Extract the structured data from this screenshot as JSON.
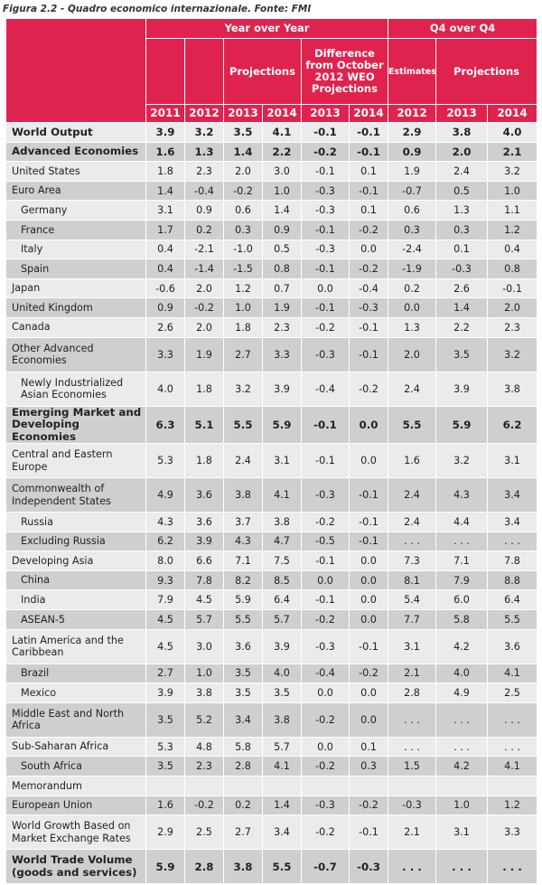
{
  "caption": "Figura 2.2 - Quadro economico internazionale. Fonte: FMI",
  "header": {
    "group_yoy": "Year over Year",
    "group_q4": "Q4 over Q4",
    "projections": "Projections",
    "difference": "Difference from October 2012 WEO Projections",
    "estimates": "Estimates",
    "projections_q4": "Projections",
    "years": [
      "2011",
      "2012",
      "2013",
      "2014",
      "2013",
      "2014",
      "2012",
      "2013",
      "2014"
    ]
  },
  "rows": [
    {
      "label": "World Output",
      "values": [
        "3.9",
        "3.2",
        "3.5",
        "4.1",
        "-0.1",
        "-0.1",
        "2.9",
        "3.8",
        "4.0"
      ],
      "bold": true
    },
    {
      "label": "Advanced Economies",
      "values": [
        "1.6",
        "1.3",
        "1.4",
        "2.2",
        "-0.2",
        "-0.1",
        "0.9",
        "2.0",
        "2.1"
      ],
      "bold": true
    },
    {
      "label": "United States",
      "values": [
        "1.8",
        "2.3",
        "2.0",
        "3.0",
        "-0.1",
        "0.1",
        "1.9",
        "2.4",
        "3.2"
      ]
    },
    {
      "label": "Euro Area",
      "values": [
        "1.4",
        "-0.4",
        "-0.2",
        "1.0",
        "-0.3",
        "-0.1",
        "-0.7",
        "0.5",
        "1.0"
      ]
    },
    {
      "label": "Germany",
      "values": [
        "3.1",
        "0.9",
        "0.6",
        "1.4",
        "-0.3",
        "0.1",
        "0.6",
        "1.3",
        "1.1"
      ],
      "indent": true
    },
    {
      "label": "France",
      "values": [
        "1.7",
        "0.2",
        "0.3",
        "0.9",
        "-0.1",
        "-0.2",
        "0.3",
        "0.3",
        "1.2"
      ],
      "indent": true
    },
    {
      "label": "Italy",
      "values": [
        "0.4",
        "-2.1",
        "-1.0",
        "0.5",
        "-0.3",
        "0.0",
        "-2.4",
        "0.1",
        "0.4"
      ],
      "indent": true
    },
    {
      "label": "Spain",
      "values": [
        "0.4",
        "-1.4",
        "-1.5",
        "0.8",
        "-0.1",
        "-0.2",
        "-1.9",
        "-0.3",
        "0.8"
      ],
      "indent": true
    },
    {
      "label": "Japan",
      "values": [
        "-0.6",
        "2.0",
        "1.2",
        "0.7",
        "0.0",
        "-0.4",
        "0.2",
        "2.6",
        "-0.1"
      ]
    },
    {
      "label": "United Kingdom",
      "values": [
        "0.9",
        "-0.2",
        "1.0",
        "1.9",
        "-0.1",
        "-0.3",
        "0.0",
        "1.4",
        "2.0"
      ]
    },
    {
      "label": "Canada",
      "values": [
        "2.6",
        "2.0",
        "1.8",
        "2.3",
        "-0.2",
        "-0.1",
        "1.3",
        "2.2",
        "2.3"
      ]
    },
    {
      "label": "Other Advanced Economies",
      "values": [
        "3.3",
        "1.9",
        "2.7",
        "3.3",
        "-0.3",
        "-0.1",
        "2.0",
        "3.5",
        "3.2"
      ],
      "tall": true
    },
    {
      "label": "Newly Industrialized Asian Economies",
      "values": [
        "4.0",
        "1.8",
        "3.2",
        "3.9",
        "-0.4",
        "-0.2",
        "2.4",
        "3.9",
        "3.8"
      ],
      "indent": true,
      "tall": true
    },
    {
      "label": "Emerging Market and Developing Economies",
      "values": [
        "6.3",
        "5.1",
        "5.5",
        "5.9",
        "-0.1",
        "0.0",
        "5.5",
        "5.9",
        "6.2"
      ],
      "bold": true,
      "tall": true
    },
    {
      "label": "Central and Eastern Europe",
      "values": [
        "5.3",
        "1.8",
        "2.4",
        "3.1",
        "-0.1",
        "0.0",
        "1.6",
        "3.2",
        "3.1"
      ],
      "tall": true
    },
    {
      "label": "Commonwealth of Independent States",
      "values": [
        "4.9",
        "3.6",
        "3.8",
        "4.1",
        "-0.3",
        "-0.1",
        "2.4",
        "4.3",
        "3.4"
      ],
      "tall": true
    },
    {
      "label": "Russia",
      "values": [
        "4.3",
        "3.6",
        "3.7",
        "3.8",
        "-0.2",
        "-0.1",
        "2.4",
        "4.4",
        "3.4"
      ],
      "indent": true
    },
    {
      "label": "Excluding Russia",
      "values": [
        "6.2",
        "3.9",
        "4.3",
        "4.7",
        "-0.5",
        "-0.1",
        ". . .",
        ". . .",
        ". . ."
      ],
      "indent": true
    },
    {
      "label": "Developing Asia",
      "values": [
        "8.0",
        "6.6",
        "7.1",
        "7.5",
        "-0.1",
        "0.0",
        "7.3",
        "7.1",
        "7.8"
      ]
    },
    {
      "label": "China",
      "values": [
        "9.3",
        "7.8",
        "8.2",
        "8.5",
        "0.0",
        "0.0",
        "8.1",
        "7.9",
        "8.8"
      ],
      "indent": true
    },
    {
      "label": "India",
      "values": [
        "7.9",
        "4.5",
        "5.9",
        "6.4",
        "-0.1",
        "0.0",
        "5.4",
        "6.0",
        "6.4"
      ],
      "indent": true
    },
    {
      "label": "ASEAN-5",
      "values": [
        "4.5",
        "5.7",
        "5.5",
        "5.7",
        "-0.2",
        "0.0",
        "7.7",
        "5.8",
        "5.5"
      ],
      "indent": true
    },
    {
      "label": "Latin America and the Caribbean",
      "values": [
        "4.5",
        "3.0",
        "3.6",
        "3.9",
        "-0.3",
        "-0.1",
        "3.1",
        "4.2",
        "3.6"
      ],
      "tall": true
    },
    {
      "label": "Brazil",
      "values": [
        "2.7",
        "1.0",
        "3.5",
        "4.0",
        "-0.4",
        "-0.2",
        "2.1",
        "4.0",
        "4.1"
      ],
      "indent": true
    },
    {
      "label": "Mexico",
      "values": [
        "3.9",
        "3.8",
        "3.5",
        "3.5",
        "0.0",
        "0.0",
        "2.8",
        "4.9",
        "2.5"
      ],
      "indent": true
    },
    {
      "label": "Middle East and North Africa",
      "values": [
        "3.5",
        "5.2",
        "3.4",
        "3.8",
        "-0.2",
        "0.0",
        ". . .",
        ". . .",
        ". . ."
      ],
      "tall": true
    },
    {
      "label": "Sub-Saharan Africa",
      "values": [
        "5.3",
        "4.8",
        "5.8",
        "5.7",
        "0.0",
        "0.1",
        ". . .",
        ". . .",
        ". . ."
      ]
    },
    {
      "label": "South Africa",
      "values": [
        "3.5",
        "2.3",
        "2.8",
        "4.1",
        "-0.2",
        "0.3",
        "1.5",
        "4.2",
        "4.1"
      ],
      "indent": true
    },
    {
      "label": "Memorandum",
      "values": [
        "",
        "",
        "",
        "",
        "",
        "",
        "",
        "",
        ""
      ]
    },
    {
      "label": "European Union",
      "values": [
        "1.6",
        "-0.2",
        "0.2",
        "1.4",
        "-0.3",
        "-0.2",
        "-0.3",
        "1.0",
        "1.2"
      ]
    },
    {
      "label": "World Growth Based on Market Exchange Rates",
      "values": [
        "2.9",
        "2.5",
        "2.7",
        "3.4",
        "-0.2",
        "-0.1",
        "2.1",
        "3.1",
        "3.3"
      ],
      "tall": true
    },
    {
      "label": "World Trade Volume (goods and services)",
      "values": [
        "5.9",
        "2.8",
        "3.8",
        "5.5",
        "-0.7",
        "-0.3",
        ". . .",
        ". . .",
        ". . ."
      ],
      "bold": true,
      "tall": true
    }
  ]
}
